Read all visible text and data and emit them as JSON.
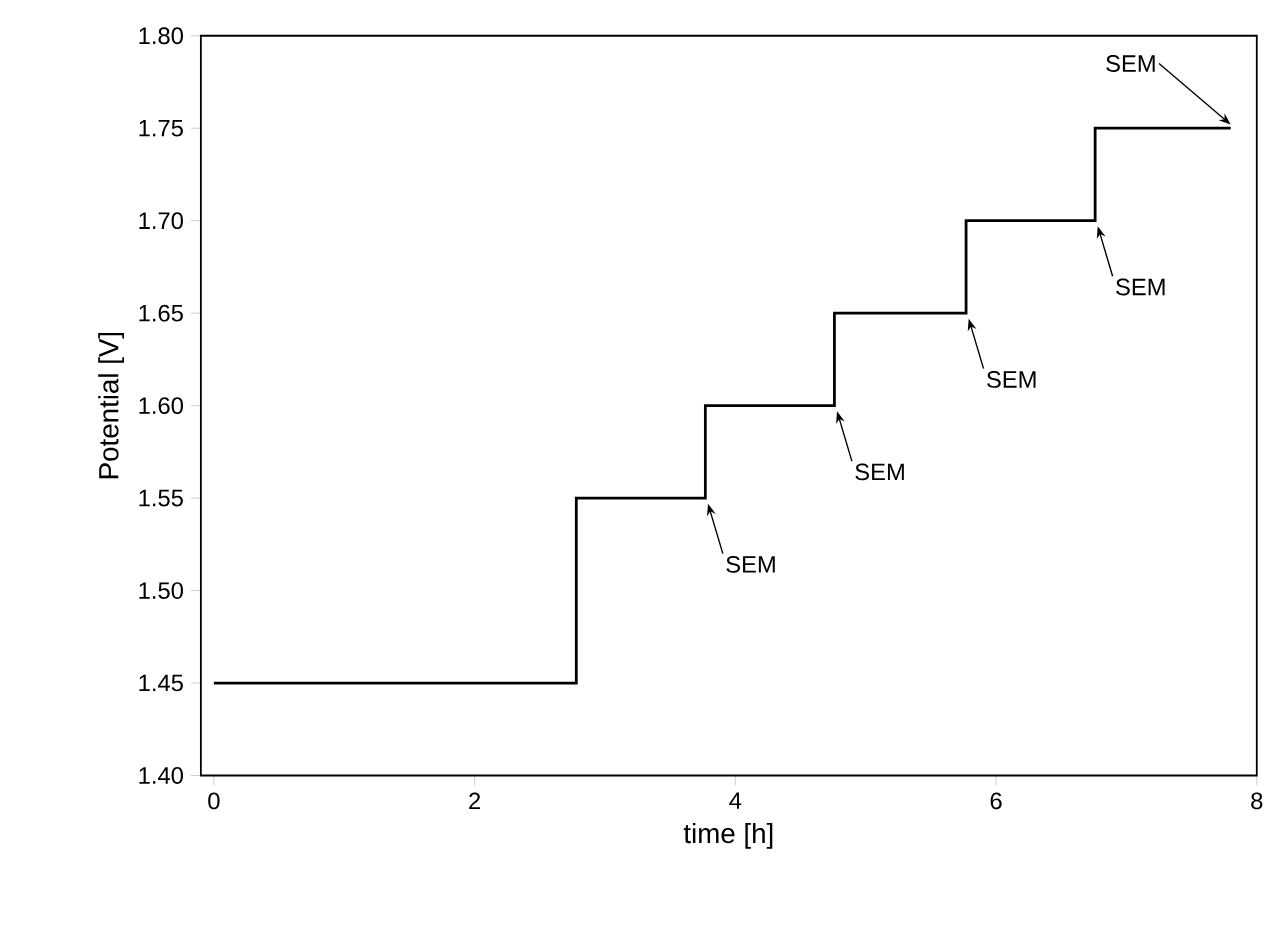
{
  "chart_data": {
    "type": "step",
    "xlabel": "time [h]",
    "ylabel": "Potential [V]",
    "x": [
      0,
      2.78,
      3.77,
      4.76,
      5.77,
      6.76,
      7.8
    ],
    "values": [
      1.45,
      1.55,
      1.6,
      1.65,
      1.7,
      1.75,
      1.75
    ],
    "color": "#000000",
    "xlim": [
      -0.1,
      8
    ],
    "xticks": [
      0,
      2,
      4,
      6,
      8
    ],
    "ylim": [
      1.4,
      1.8
    ],
    "yticks": [
      {
        "value": 1.4,
        "label": "1.40"
      },
      {
        "value": 1.45,
        "label": "1.45"
      },
      {
        "value": 1.5,
        "label": "1.50"
      },
      {
        "value": 1.55,
        "label": "1.55"
      },
      {
        "value": 1.6,
        "label": "1.60"
      },
      {
        "value": 1.65,
        "label": "1.65"
      },
      {
        "value": 1.7,
        "label": "1.70"
      },
      {
        "value": 1.75,
        "label": "1.75"
      },
      {
        "value": 1.8,
        "label": "1.80"
      }
    ],
    "grid": false,
    "annotations": [
      {
        "text": "SEM",
        "x": 3.77,
        "y": 1.55
      },
      {
        "text": "SEM",
        "x": 4.76,
        "y": 1.6
      },
      {
        "text": "SEM",
        "x": 5.77,
        "y": 1.65
      },
      {
        "text": "SEM",
        "x": 6.76,
        "y": 1.7
      },
      {
        "text": "SEM",
        "x": 7.8,
        "y": 1.75
      }
    ]
  }
}
